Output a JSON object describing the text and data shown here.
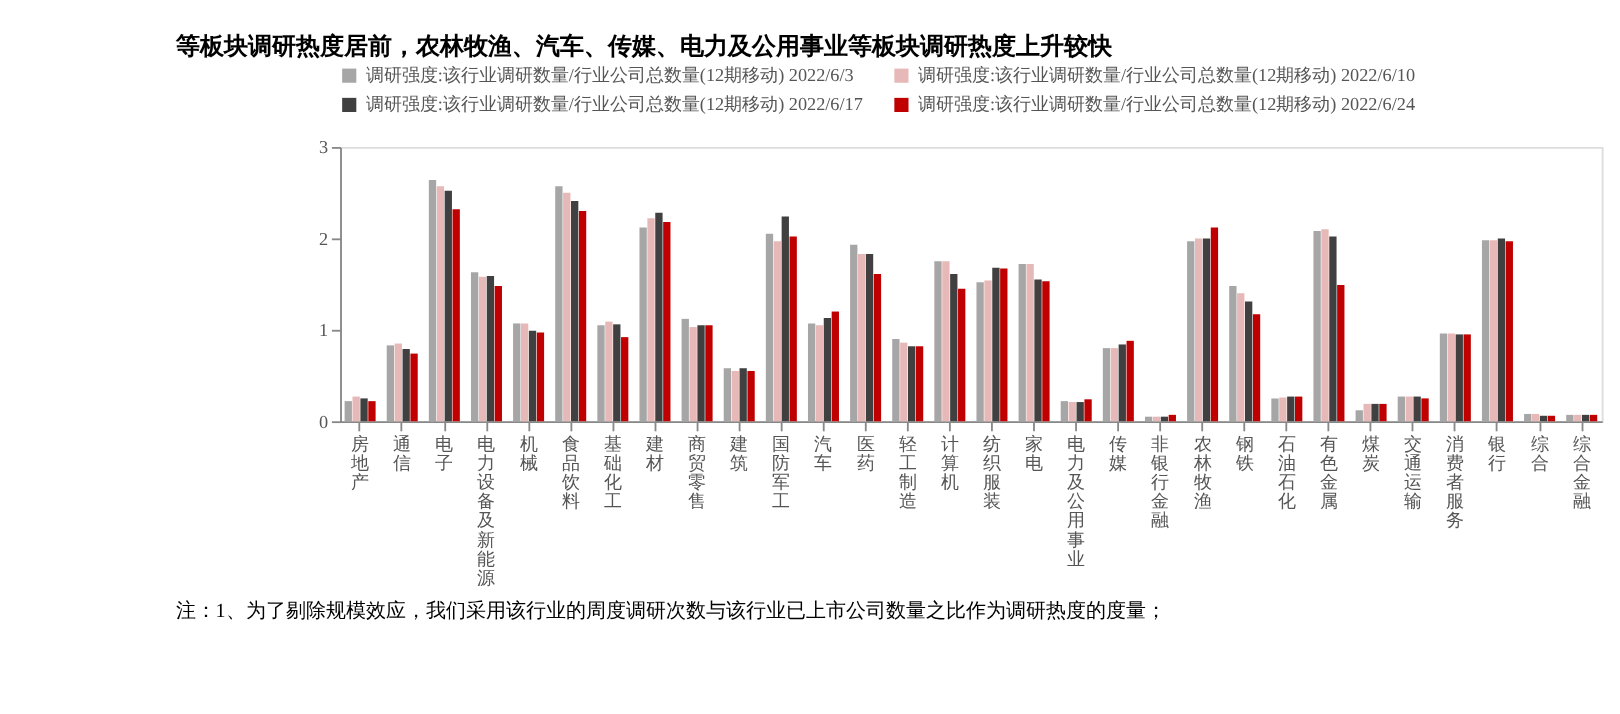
{
  "chart_data": {
    "type": "bar",
    "title": "等板块调研热度居前，农林牧渔、汽车、传媒、电力及公用事业等板块调研热度上升较快",
    "categories": [
      "房地产",
      "通信",
      "电子",
      "电力设备及新能源",
      "机械",
      "食品饮料",
      "基础化工",
      "建材",
      "商贸零售",
      "建筑",
      "国防军工",
      "汽车",
      "医药",
      "轻工制造",
      "计算机",
      "纺织服装",
      "家电",
      "电力及公用事业",
      "传媒",
      "非银行金融",
      "农林牧渔",
      "钢铁",
      "石油石化",
      "有色金属",
      "煤炭",
      "交通运输",
      "消费者服务",
      "银行",
      "综合",
      "综合金融"
    ],
    "series": [
      {
        "name": "调研强度:该行业调研数量/行业公司总数量(12期移动) 2022/6/3",
        "color": "#a6a6a6",
        "values": [
          0.22,
          0.83,
          2.64,
          1.63,
          1.07,
          2.57,
          1.05,
          2.12,
          1.12,
          0.58,
          2.05,
          1.07,
          1.93,
          0.9,
          1.75,
          1.52,
          1.72,
          0.22,
          0.8,
          0.05,
          1.97,
          1.48,
          0.25,
          2.08,
          0.12,
          0.27,
          0.96,
          1.98,
          0.08,
          0.07
        ]
      },
      {
        "name": "调研强度:该行业调研数量/行业公司总数量(12期移动) 2022/6/10",
        "color": "#e6b8b7",
        "values": [
          0.27,
          0.85,
          2.57,
          1.58,
          1.07,
          2.5,
          1.09,
          2.22,
          1.03,
          0.55,
          1.97,
          1.05,
          1.83,
          0.86,
          1.75,
          1.54,
          1.72,
          0.21,
          0.8,
          0.05,
          2.0,
          1.4,
          0.26,
          2.1,
          0.19,
          0.27,
          0.96,
          1.98,
          0.08,
          0.07
        ]
      },
      {
        "name": "调研强度:该行业调研数量/行业公司总数量(12期移动) 2022/6/17",
        "color": "#404040",
        "values": [
          0.25,
          0.79,
          2.52,
          1.59,
          0.99,
          2.41,
          1.06,
          2.28,
          1.05,
          0.58,
          2.24,
          1.13,
          1.83,
          0.82,
          1.61,
          1.68,
          1.55,
          0.21,
          0.84,
          0.05,
          2.0,
          1.31,
          0.27,
          2.02,
          0.19,
          0.27,
          0.95,
          2.0,
          0.06,
          0.07
        ]
      },
      {
        "name": "调研强度:该行业调研数量/行业公司总数量(12期移动) 2022/6/24",
        "color": "#c00000",
        "values": [
          0.22,
          0.74,
          2.32,
          1.48,
          0.97,
          2.3,
          0.92,
          2.18,
          1.05,
          0.55,
          2.02,
          1.2,
          1.61,
          0.82,
          1.45,
          1.67,
          1.53,
          0.24,
          0.88,
          0.07,
          2.12,
          1.17,
          0.27,
          1.49,
          0.19,
          0.25,
          0.95,
          1.97,
          0.06,
          0.07
        ]
      }
    ],
    "ylim": [
      0,
      3
    ],
    "yticks": [
      0,
      1,
      2,
      3
    ],
    "grid": false,
    "legend": "top",
    "annotations": [
      "注：1、为了剔除规模效应，我们采用该行业的周度调研次数与该行业已上市公司数量之比作为调研热度的度量；"
    ]
  }
}
